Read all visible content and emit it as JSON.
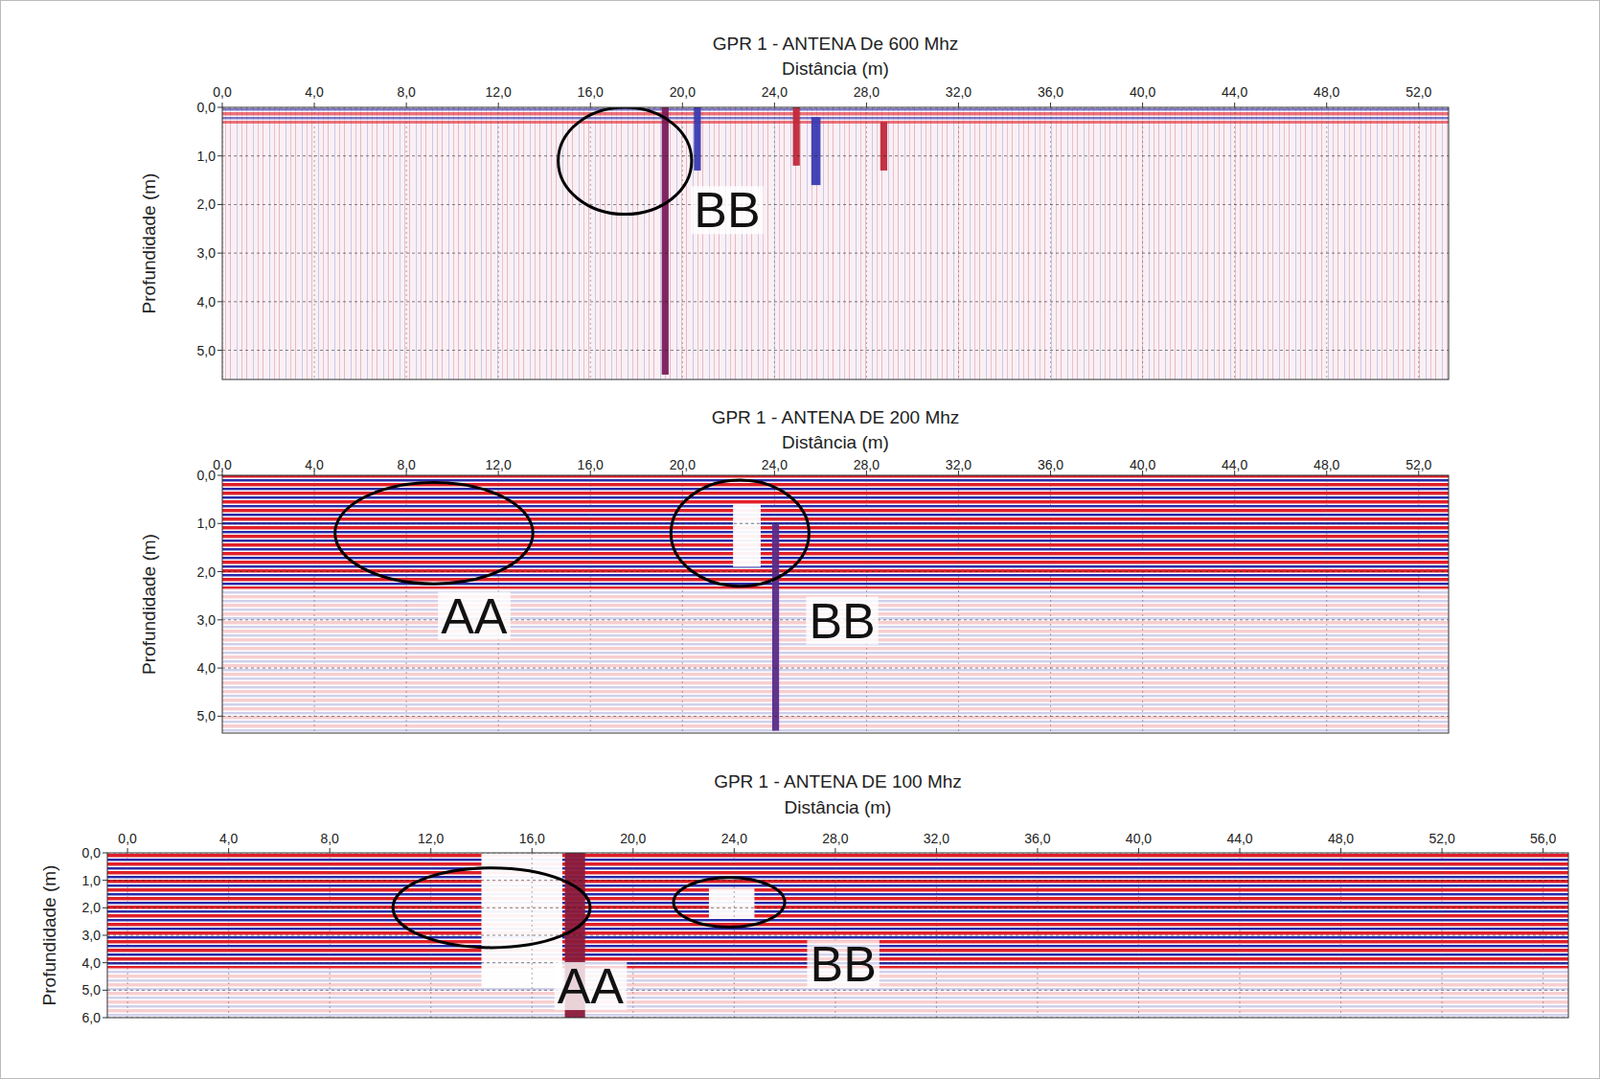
{
  "chart_data": [
    {
      "type": "radargram",
      "title": "GPR 1 - ANTENA De 600 Mhz",
      "x_label": "Distância (m)",
      "y_label": "Profundidade (m)",
      "xlim": [
        0,
        53.3
      ],
      "xticks": [
        {
          "value": 0,
          "label": "0,0"
        },
        {
          "value": 4,
          "label": "4,0"
        },
        {
          "value": 8,
          "label": "8,0"
        },
        {
          "value": 12,
          "label": "12,0"
        },
        {
          "value": 16,
          "label": "16,0"
        },
        {
          "value": 20,
          "label": "20,0"
        },
        {
          "value": 24,
          "label": "24,0"
        },
        {
          "value": 28,
          "label": "28,0"
        },
        {
          "value": 32,
          "label": "32,0"
        },
        {
          "value": 36,
          "label": "36,0"
        },
        {
          "value": 40,
          "label": "40,0"
        },
        {
          "value": 44,
          "label": "44,0"
        },
        {
          "value": 48,
          "label": "48,0"
        },
        {
          "value": 52,
          "label": "52,0"
        }
      ],
      "ylim": [
        0,
        5.6
      ],
      "yticks": [
        {
          "value": 0,
          "label": "0,0"
        },
        {
          "value": 1,
          "label": "1,0"
        },
        {
          "value": 2,
          "label": "2,0"
        },
        {
          "value": 3,
          "label": "3,0"
        },
        {
          "value": 4,
          "label": "4,0"
        },
        {
          "value": 5,
          "label": "5,0"
        }
      ],
      "grid": true,
      "anomalies": [
        {
          "x0": 19.1,
          "x1": 19.4,
          "y0": 0,
          "y1": 5.5,
          "color": "#7a1a5a"
        },
        {
          "x0": 20.5,
          "x1": 20.8,
          "y0": 0,
          "y1": 1.3,
          "color": "#3a3ab0"
        },
        {
          "x0": 24.8,
          "x1": 25.1,
          "y0": 0,
          "y1": 1.2,
          "color": "#c0283a"
        },
        {
          "x0": 25.6,
          "x1": 26.0,
          "y0": 0.2,
          "y1": 1.6,
          "color": "#3a3ab0"
        },
        {
          "x0": 28.6,
          "x1": 28.9,
          "y0": 0.3,
          "y1": 1.3,
          "color": "#c0283a"
        }
      ],
      "annotations": [
        {
          "label": "BB",
          "x": 17.5,
          "y": 1.1,
          "rx": 2.9,
          "ry": 1.1,
          "label_x": 20.5,
          "label_y": 2.2
        }
      ]
    },
    {
      "type": "radargram",
      "title": "GPR 1 - ANTENA DE 200 Mhz",
      "x_label": "Distância (m)",
      "y_label": "Profundidade (m)",
      "xlim": [
        0,
        53.3
      ],
      "xticks": [
        {
          "value": 0,
          "label": "0,0"
        },
        {
          "value": 4,
          "label": "4,0"
        },
        {
          "value": 8,
          "label": "8,0"
        },
        {
          "value": 12,
          "label": "12,0"
        },
        {
          "value": 16,
          "label": "16,0"
        },
        {
          "value": 20,
          "label": "20,0"
        },
        {
          "value": 24,
          "label": "24,0"
        },
        {
          "value": 28,
          "label": "28,0"
        },
        {
          "value": 32,
          "label": "32,0"
        },
        {
          "value": 36,
          "label": "36,0"
        },
        {
          "value": 40,
          "label": "40,0"
        },
        {
          "value": 44,
          "label": "44,0"
        },
        {
          "value": 48,
          "label": "48,0"
        },
        {
          "value": 52,
          "label": "52,0"
        }
      ],
      "ylim": [
        0,
        5.35
      ],
      "yticks": [
        {
          "value": 0,
          "label": "0,0"
        },
        {
          "value": 1,
          "label": "1,0"
        },
        {
          "value": 2,
          "label": "2,0"
        },
        {
          "value": 3,
          "label": "3,0"
        },
        {
          "value": 4,
          "label": "4,0"
        },
        {
          "value": 5,
          "label": "5,0"
        }
      ],
      "grid": true,
      "anomalies": [
        {
          "x0": 22.2,
          "x1": 23.4,
          "y0": 0.6,
          "y1": 1.9,
          "color": "#ffffff"
        },
        {
          "x0": 23.9,
          "x1": 24.2,
          "y0": 1.0,
          "y1": 5.3,
          "color": "#5a2a8a"
        }
      ],
      "annotations": [
        {
          "label": "AA",
          "x": 9.2,
          "y": 1.2,
          "rx": 4.3,
          "ry": 1.05,
          "label_x": 9.5,
          "label_y": 3.0
        },
        {
          "label": "BB",
          "x": 22.5,
          "y": 1.2,
          "rx": 3.0,
          "ry": 1.1,
          "label_x": 25.5,
          "label_y": 3.1
        }
      ]
    },
    {
      "type": "radargram",
      "title": "GPR 1 - ANTENA DE 100 Mhz",
      "x_label": "Distância (m)",
      "y_label": "Profundidade (m)",
      "xlim": [
        -0.8,
        57.0
      ],
      "xticks": [
        {
          "value": 0,
          "label": "0,0"
        },
        {
          "value": 4,
          "label": "4,0"
        },
        {
          "value": 8,
          "label": "8,0"
        },
        {
          "value": 12,
          "label": "12,0"
        },
        {
          "value": 16,
          "label": "16,0"
        },
        {
          "value": 20,
          "label": "20,0"
        },
        {
          "value": 24,
          "label": "24,0"
        },
        {
          "value": 28,
          "label": "28,0"
        },
        {
          "value": 32,
          "label": "32,0"
        },
        {
          "value": 36,
          "label": "36,0"
        },
        {
          "value": 40,
          "label": "40,0"
        },
        {
          "value": 44,
          "label": "44,0"
        },
        {
          "value": 48,
          "label": "48,0"
        },
        {
          "value": 52,
          "label": "52,0"
        },
        {
          "value": 56,
          "label": "56,0"
        }
      ],
      "ylim": [
        0,
        6
      ],
      "yticks": [
        {
          "value": 0,
          "label": "0,0"
        },
        {
          "value": 1,
          "label": "1,0"
        },
        {
          "value": 2,
          "label": "2,0"
        },
        {
          "value": 3,
          "label": "3,0"
        },
        {
          "value": 4,
          "label": "4,0"
        },
        {
          "value": 5,
          "label": "5,0"
        },
        {
          "value": 6,
          "label": "6,0"
        }
      ],
      "grid": true,
      "anomalies": [
        {
          "x0": 14.0,
          "x1": 17.2,
          "y0": 0,
          "y1": 4.9,
          "color": "#ffffff"
        },
        {
          "x0": 17.3,
          "x1": 18.1,
          "y0": 0,
          "y1": 6,
          "color": "#8a1a3a"
        },
        {
          "x0": 23.0,
          "x1": 24.8,
          "y0": 1.3,
          "y1": 2.4,
          "color": "#ffffff"
        }
      ],
      "annotations": [
        {
          "label": "AA",
          "x": 14.4,
          "y": 2.0,
          "rx": 3.9,
          "ry": 1.45,
          "label_x": 17.0,
          "label_y": 5.0
        },
        {
          "label": "BB",
          "x": 23.8,
          "y": 1.8,
          "rx": 2.2,
          "ry": 0.9,
          "label_x": 27.0,
          "label_y": 4.2
        }
      ]
    }
  ]
}
